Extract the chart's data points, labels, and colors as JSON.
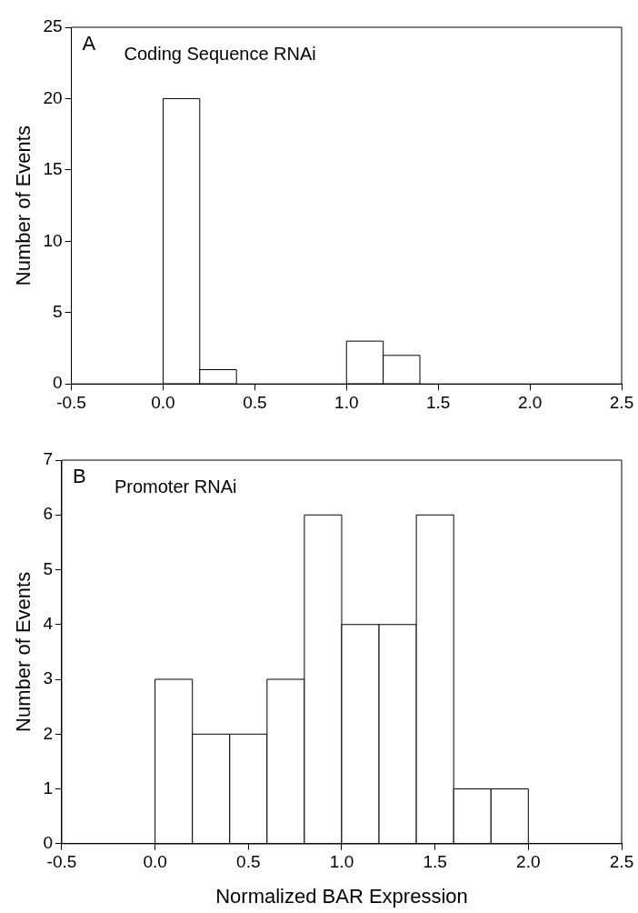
{
  "chart_data": [
    {
      "type": "histogram",
      "ylabel": "Number of Events",
      "annotations": [
        "A",
        "Coding Sequence RNAi"
      ],
      "bins": [
        0,
        0.2,
        0.4,
        0.6,
        0.8,
        1.0,
        1.2,
        1.4
      ],
      "values": [
        20,
        1,
        0,
        0,
        0,
        3,
        2
      ],
      "color": "#ffffff",
      "xlim": [
        -0.5,
        2.5
      ],
      "xticks": [
        {
          "value": -0.5,
          "label": "-0.5"
        },
        {
          "value": 0,
          "label": "0.0"
        },
        {
          "value": 0.5,
          "label": "0.5"
        },
        {
          "value": 1,
          "label": "1.0"
        },
        {
          "value": 1.5,
          "label": "1.5"
        },
        {
          "value": 2,
          "label": "2.0"
        },
        {
          "value": 2.5,
          "label": "2.5"
        }
      ],
      "ylim": [
        0,
        25
      ],
      "yticks": [
        0,
        5,
        10,
        15,
        20,
        25
      ],
      "grid": false,
      "legend": false
    },
    {
      "type": "histogram",
      "xlabel": "Normalized BAR Expression",
      "ylabel": "Number of Events",
      "annotations": [
        "B",
        "Promoter RNAi"
      ],
      "bins": [
        0,
        0.2,
        0.4,
        0.6,
        0.8,
        1.0,
        1.2,
        1.4,
        1.6,
        1.8,
        2.0
      ],
      "values": [
        3,
        2,
        2,
        3,
        6,
        4,
        4,
        6,
        1,
        1
      ],
      "color": "#ffffff",
      "xlim": [
        -0.5,
        2.5
      ],
      "xticks": [
        {
          "value": -0.5,
          "label": "-0.5"
        },
        {
          "value": 0,
          "label": "0.0"
        },
        {
          "value": 0.5,
          "label": "0.5"
        },
        {
          "value": 1,
          "label": "1.0"
        },
        {
          "value": 1.5,
          "label": "1.5"
        },
        {
          "value": 2,
          "label": "2.0"
        },
        {
          "value": 2.5,
          "label": "2.5"
        }
      ],
      "ylim": [
        0,
        7
      ],
      "yticks": [
        0,
        1,
        2,
        3,
        4,
        5,
        6,
        7
      ],
      "grid": false,
      "legend": false
    }
  ]
}
